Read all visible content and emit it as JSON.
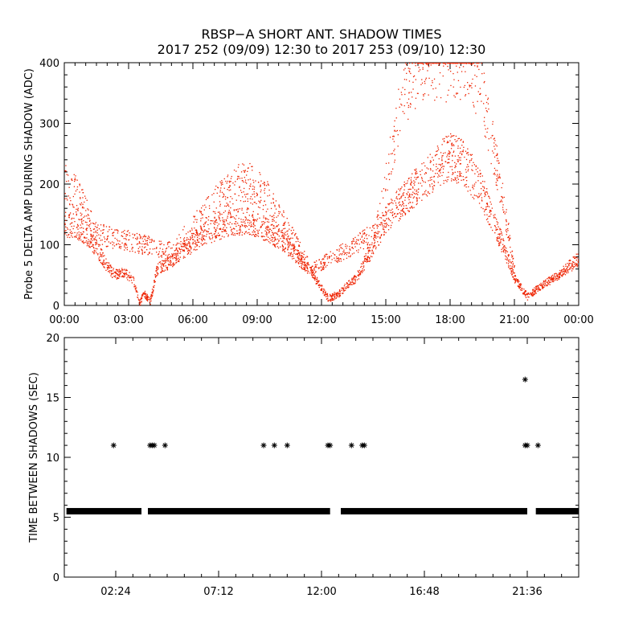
{
  "title": {
    "line1": "RBSP−A SHORT ANT. SHADOW TIMES",
    "line2": "2017 252 (09/09) 12:30 to 2017 253 (09/10) 12:30"
  },
  "colors": {
    "probe": "#ee2200",
    "shadow": "#000000",
    "axes": "#000000",
    "background": "#ffffff"
  },
  "chart_data": [
    {
      "type": "scatter",
      "ylabel": "Probe 5 DELTA AMP DURING SHADOW (ADC)",
      "xlabel": "",
      "x_unit": "hours",
      "xlim": [
        0,
        24
      ],
      "ylim": [
        0,
        400
      ],
      "x_tick_values": [
        0,
        3,
        6,
        9,
        12,
        15,
        18,
        21,
        24
      ],
      "x_ticks": [
        "00:00",
        "03:00",
        "06:00",
        "09:00",
        "12:00",
        "15:00",
        "18:00",
        "21:00",
        "00:00"
      ],
      "y_ticks": [
        0,
        100,
        200,
        300,
        400
      ],
      "grid": false,
      "series": [
        {
          "color": "#ee2200",
          "x": [
            0.0,
            0.5,
            1.0,
            1.5,
            1.9,
            2.2,
            2.5,
            2.8,
            3.2,
            3.5,
            3.7,
            4.0,
            4.3,
            4.8,
            5.5,
            6.5,
            7.5,
            8.5,
            9.5,
            10.5,
            11.5,
            12.0,
            12.3,
            12.8,
            13.2,
            13.6,
            14.2,
            15.0,
            15.8,
            16.5,
            17.5,
            18.0,
            18.5,
            19.0,
            19.5,
            20.0,
            20.5,
            21.0,
            21.6,
            22.1,
            23.0,
            24.0
          ],
          "y": [
            135,
            132,
            120,
            95,
            70,
            55,
            52,
            55,
            42,
            5,
            20,
            8,
            60,
            70,
            92,
            118,
            135,
            140,
            125,
            95,
            55,
            28,
            12,
            20,
            35,
            45,
            85,
            145,
            175,
            200,
            235,
            245,
            238,
            215,
            185,
            140,
            95,
            45,
            15,
            30,
            50,
            78
          ]
        },
        {
          "color": "#ee2200",
          "x": [
            0.0,
            0.5,
            1.0,
            1.4,
            5.0,
            6.0,
            7.0,
            8.0,
            8.5,
            9.0,
            9.5,
            10.5,
            11.5,
            14.5,
            15.0,
            15.5,
            16.0,
            16.5,
            17.5,
            18.5,
            19.0,
            19.5,
            20.0,
            20.5,
            21.0
          ],
          "y": [
            205,
            185,
            160,
            120,
            90,
            130,
            170,
            200,
            205,
            195,
            175,
            120,
            60,
            120,
            215,
            300,
            360,
            395,
            400,
            400,
            395,
            345,
            260,
            160,
            60
          ]
        }
      ]
    },
    {
      "type": "scatter",
      "ylabel": "TIME BETWEEN SHADOWS (SEC)",
      "xlabel": "",
      "x_unit": "hours",
      "xlim": [
        0,
        24
      ],
      "ylim": [
        0,
        20
      ],
      "x_tick_values": [
        2.4,
        7.2,
        12.0,
        16.8,
        21.6
      ],
      "x_ticks": [
        "02:24",
        "07:12",
        "12:00",
        "16:48",
        "21:36"
      ],
      "y_ticks": [
        0,
        5,
        10,
        15,
        20
      ],
      "grid": false,
      "marker": "asterisk",
      "baseline": {
        "y": 5.5,
        "segments": [
          [
            0.1,
            3.6
          ],
          [
            3.9,
            12.4
          ],
          [
            12.9,
            21.6
          ],
          [
            22.0,
            24.0
          ]
        ]
      },
      "points": {
        "x": [
          2.3,
          4.0,
          4.1,
          4.2,
          4.7,
          9.3,
          9.8,
          10.4,
          12.3,
          12.4,
          13.4,
          13.9,
          14.0,
          21.5,
          21.6,
          22.1,
          21.5
        ],
        "y": [
          11,
          11,
          11,
          11,
          11,
          11,
          11,
          11,
          11,
          11,
          11,
          11,
          11,
          11,
          11,
          11,
          16.5
        ]
      }
    }
  ]
}
